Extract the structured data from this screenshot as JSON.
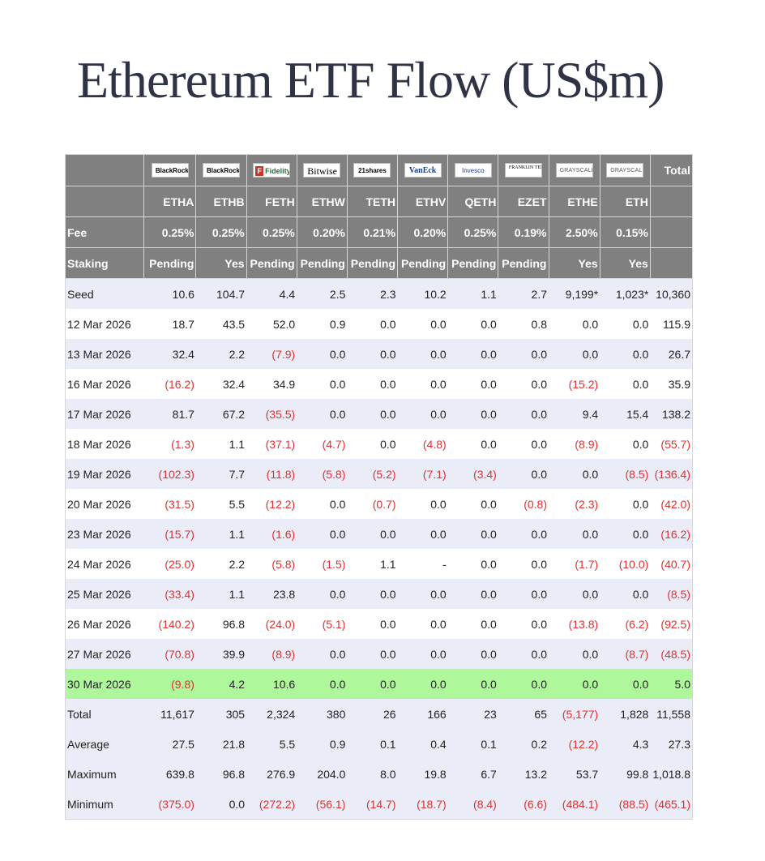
{
  "title": "Ethereum ETF Flow (US$m)",
  "colors": {
    "header_bg": "#808080",
    "band_bg": "#eaedf7",
    "highlight_bg": "#aef79a",
    "negative": "#e03030"
  },
  "logos": [
    "BlackRock",
    "BlackRock",
    "Fidelity",
    "Bitwise",
    "21shares",
    "VanEck",
    "Invesco",
    "FRANKLIN TEMPLETON",
    "GRAYSCALE",
    "GRAYSCALE"
  ],
  "total_header": "Total",
  "tickers": [
    "ETHA",
    "ETHB",
    "FETH",
    "ETHW",
    "TETH",
    "ETHV",
    "QETH",
    "EZET",
    "ETHE",
    "ETH"
  ],
  "fee_label": "Fee",
  "fees": [
    "0.25%",
    "0.25%",
    "0.25%",
    "0.20%",
    "0.21%",
    "0.20%",
    "0.25%",
    "0.19%",
    "2.50%",
    "0.15%"
  ],
  "staking_label": "Staking",
  "staking": [
    "Pending",
    "Yes",
    "Pending",
    "Pending",
    "Pending",
    "Pending",
    "Pending",
    "Pending",
    "Yes",
    "Yes"
  ],
  "rows": [
    {
      "label": "Seed",
      "values": [
        "10.6",
        "104.7",
        "4.4",
        "2.5",
        "2.3",
        "10.2",
        "1.1",
        "2.7",
        "9,199*",
        "1,023*",
        "10,360"
      ]
    },
    {
      "label": "12 Mar 2026",
      "values": [
        "18.7",
        "43.5",
        "52.0",
        "0.9",
        "0.0",
        "0.0",
        "0.0",
        "0.8",
        "0.0",
        "0.0",
        "115.9"
      ]
    },
    {
      "label": "13 Mar 2026",
      "values": [
        "32.4",
        "2.2",
        "(7.9)",
        "0.0",
        "0.0",
        "0.0",
        "0.0",
        "0.0",
        "0.0",
        "0.0",
        "26.7"
      ]
    },
    {
      "label": "16 Mar 2026",
      "values": [
        "(16.2)",
        "32.4",
        "34.9",
        "0.0",
        "0.0",
        "0.0",
        "0.0",
        "0.0",
        "(15.2)",
        "0.0",
        "35.9"
      ]
    },
    {
      "label": "17 Mar 2026",
      "values": [
        "81.7",
        "67.2",
        "(35.5)",
        "0.0",
        "0.0",
        "0.0",
        "0.0",
        "0.0",
        "9.4",
        "15.4",
        "138.2"
      ]
    },
    {
      "label": "18 Mar 2026",
      "values": [
        "(1.3)",
        "1.1",
        "(37.1)",
        "(4.7)",
        "0.0",
        "(4.8)",
        "0.0",
        "0.0",
        "(8.9)",
        "0.0",
        "(55.7)"
      ]
    },
    {
      "label": "19 Mar 2026",
      "values": [
        "(102.3)",
        "7.7",
        "(11.8)",
        "(5.8)",
        "(5.2)",
        "(7.1)",
        "(3.4)",
        "0.0",
        "0.0",
        "(8.5)",
        "(136.4)"
      ]
    },
    {
      "label": "20 Mar 2026",
      "values": [
        "(31.5)",
        "5.5",
        "(12.2)",
        "0.0",
        "(0.7)",
        "0.0",
        "0.0",
        "(0.8)",
        "(2.3)",
        "0.0",
        "(42.0)"
      ]
    },
    {
      "label": "23 Mar 2026",
      "values": [
        "(15.7)",
        "1.1",
        "(1.6)",
        "0.0",
        "0.0",
        "0.0",
        "0.0",
        "0.0",
        "0.0",
        "0.0",
        "(16.2)"
      ]
    },
    {
      "label": "24 Mar 2026",
      "values": [
        "(25.0)",
        "2.2",
        "(5.8)",
        "(1.5)",
        "1.1",
        "-",
        "0.0",
        "0.0",
        "(1.7)",
        "(10.0)",
        "(40.7)"
      ]
    },
    {
      "label": "25 Mar 2026",
      "values": [
        "(33.4)",
        "1.1",
        "23.8",
        "0.0",
        "0.0",
        "0.0",
        "0.0",
        "0.0",
        "0.0",
        "0.0",
        "(8.5)"
      ]
    },
    {
      "label": "26 Mar 2026",
      "values": [
        "(140.2)",
        "96.8",
        "(24.0)",
        "(5.1)",
        "0.0",
        "0.0",
        "0.0",
        "0.0",
        "(13.8)",
        "(6.2)",
        "(92.5)"
      ]
    },
    {
      "label": "27 Mar 2026",
      "values": [
        "(70.8)",
        "39.9",
        "(8.9)",
        "0.0",
        "0.0",
        "0.0",
        "0.0",
        "0.0",
        "0.0",
        "(8.7)",
        "(48.5)"
      ]
    },
    {
      "label": "30 Mar 2026",
      "values": [
        "(9.8)",
        "4.2",
        "10.6",
        "0.0",
        "0.0",
        "0.0",
        "0.0",
        "0.0",
        "0.0",
        "0.0",
        "5.0"
      ]
    },
    {
      "label": "Total",
      "values": [
        "11,617",
        "305",
        "2,324",
        "380",
        "26",
        "166",
        "23",
        "65",
        "(5,177)",
        "1,828",
        "11,558"
      ]
    },
    {
      "label": "Average",
      "values": [
        "27.5",
        "21.8",
        "5.5",
        "0.9",
        "0.1",
        "0.4",
        "0.1",
        "0.2",
        "(12.2)",
        "4.3",
        "27.3"
      ]
    },
    {
      "label": "Maximum",
      "values": [
        "639.8",
        "96.8",
        "276.9",
        "204.0",
        "8.0",
        "19.8",
        "6.7",
        "13.2",
        "53.7",
        "99.8",
        "1,018.8"
      ]
    },
    {
      "label": "Minimum",
      "values": [
        "(375.0)",
        "0.0",
        "(272.2)",
        "(56.1)",
        "(14.7)",
        "(18.7)",
        "(8.4)",
        "(6.6)",
        "(484.1)",
        "(88.5)",
        "(465.1)"
      ]
    }
  ]
}
